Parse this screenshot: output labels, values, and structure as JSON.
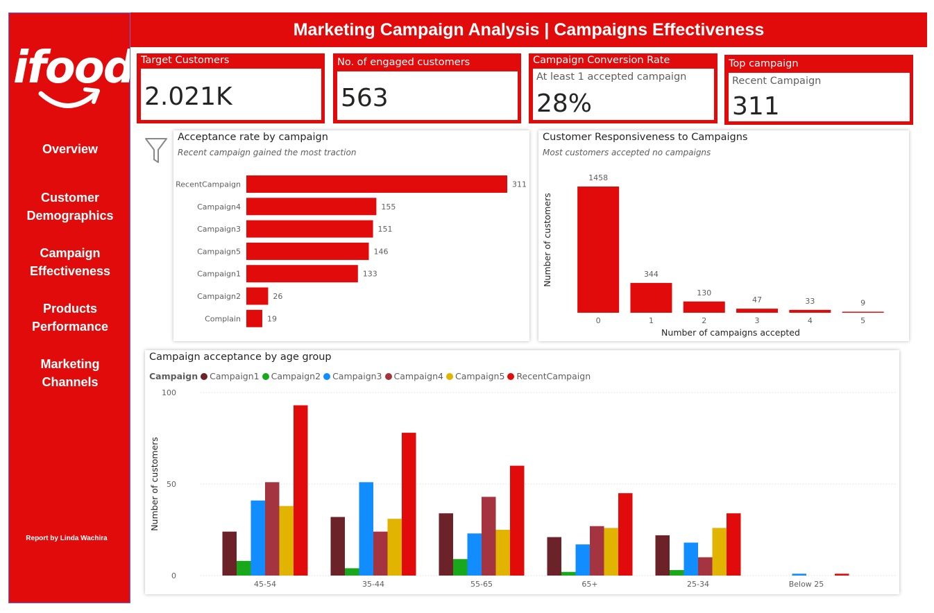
{
  "brand": {
    "logo_text": "ifood",
    "accent_color": "#e20b0b"
  },
  "header": {
    "title": "Marketing Campaign Analysis | Campaigns Effectiveness"
  },
  "sidebar": {
    "items": [
      {
        "line1": "Overview",
        "line2": ""
      },
      {
        "line1": "Customer",
        "line2": "Demographics"
      },
      {
        "line1": "Campaign",
        "line2": "Effectiveness"
      },
      {
        "line1": "Products",
        "line2": "Performance"
      },
      {
        "line1": "Marketing",
        "line2": "Channels"
      }
    ],
    "credit": "Report by Linda Wachira"
  },
  "kpis": {
    "target": {
      "title": "Target Customers",
      "value": "2.021K"
    },
    "engaged": {
      "title": "No. of engaged customers",
      "value": "563"
    },
    "conversion": {
      "title": "Campaign Conversion Rate",
      "subtitle": "At least 1 accepted campaign",
      "value": "28%"
    },
    "top": {
      "title": "Top campaign",
      "subtitle": "Recent Campaign",
      "value": "311"
    }
  },
  "filter": {
    "icon": "filter-icon"
  },
  "chart_data": [
    {
      "type": "bar",
      "orientation": "horizontal",
      "title": "Acceptance rate by campaign",
      "subtitle": "Recent campaign gained the most traction",
      "categories": [
        "RecentCampaign",
        "Campaign4",
        "Campaign3",
        "Campaign5",
        "Campaign1",
        "Campaign2",
        "Complain"
      ],
      "values": [
        311,
        155,
        151,
        146,
        133,
        26,
        19
      ],
      "color": "#e20b0b",
      "data_labels": true
    },
    {
      "type": "bar",
      "title": "Customer Responsiveness to Campaigns",
      "subtitle": "Most customers accepted no campaigns",
      "categories": [
        "0",
        "1",
        "2",
        "3",
        "4",
        "5"
      ],
      "values": [
        1458,
        344,
        130,
        47,
        33,
        9
      ],
      "xlabel": "Number of campaigns accepted",
      "ylabel": "Number of customers",
      "color": "#e20b0b",
      "data_labels": true
    },
    {
      "type": "bar",
      "title": "Campaign acceptance by age group",
      "legend_title": "Campaign",
      "legend_position": "top-left",
      "categories": [
        "45-54",
        "35-44",
        "55-65",
        "65+",
        "25-34",
        "Below 25"
      ],
      "series": [
        {
          "name": "Campaign1",
          "color": "#6b2228",
          "values": [
            24,
            32,
            34,
            21,
            22,
            0
          ]
        },
        {
          "name": "Campaign2",
          "color": "#19a81c",
          "values": [
            8,
            4,
            9,
            2,
            3,
            0
          ]
        },
        {
          "name": "Campaign3",
          "color": "#118dff",
          "values": [
            41,
            51,
            23,
            17,
            18,
            1
          ]
        },
        {
          "name": "Campaign4",
          "color": "#a4343f",
          "values": [
            51,
            24,
            43,
            27,
            10,
            0
          ]
        },
        {
          "name": "Campaign5",
          "color": "#e0b400",
          "values": [
            38,
            31,
            25,
            26,
            26,
            0
          ]
        },
        {
          "name": "RecentCampaign",
          "color": "#e20b0b",
          "values": [
            93,
            78,
            60,
            45,
            34,
            1
          ]
        }
      ],
      "ylabel": "Number of customers",
      "yticks": [
        0,
        50,
        100
      ],
      "ylim": [
        0,
        100
      ],
      "grid": true
    }
  ]
}
